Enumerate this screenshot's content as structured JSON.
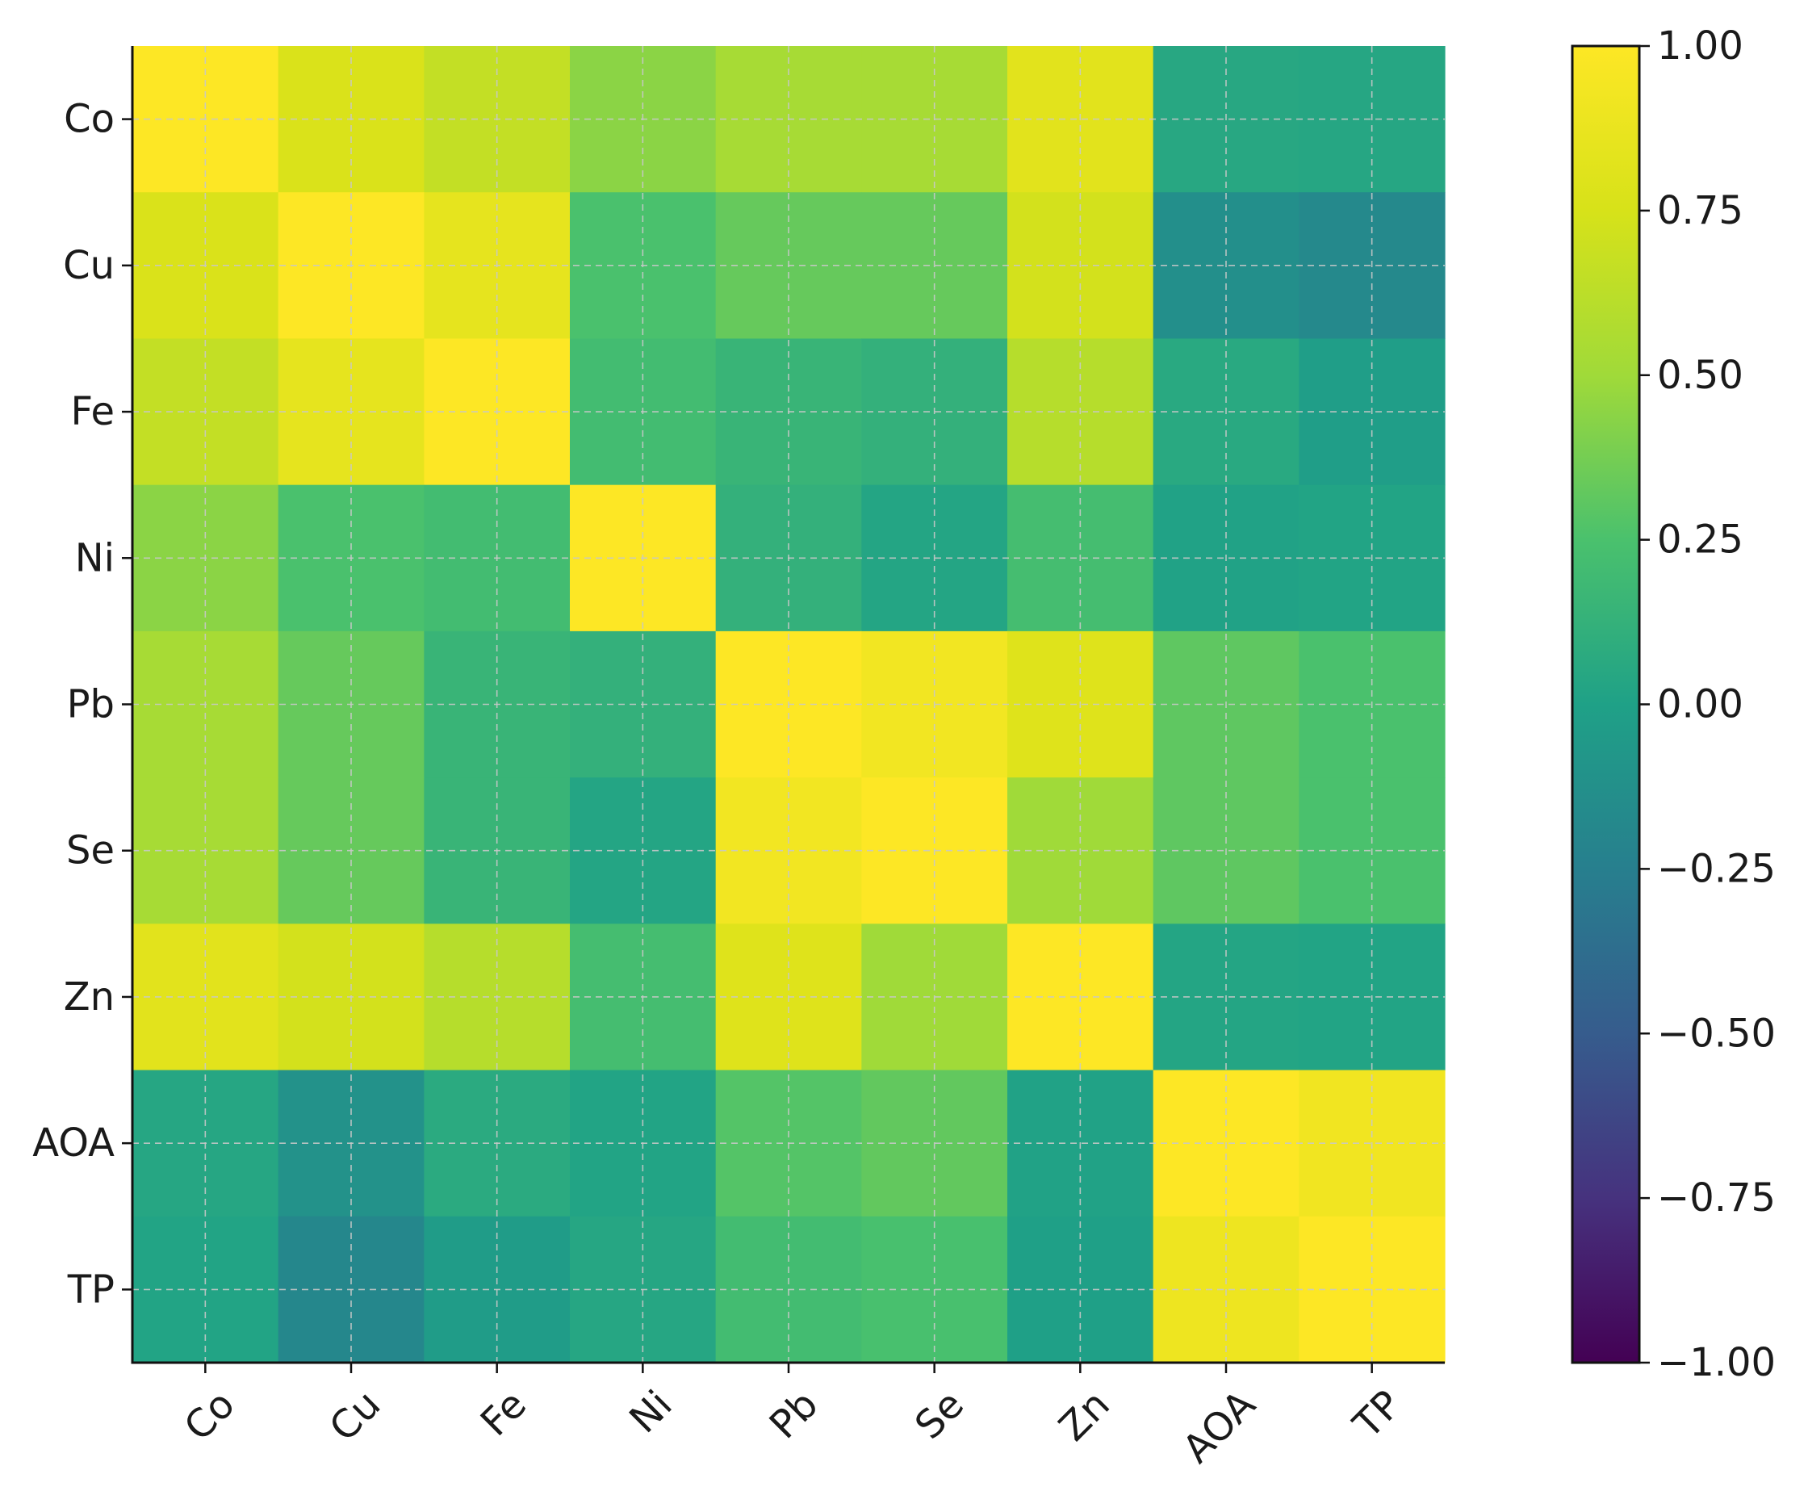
{
  "chart_data": {
    "type": "heatmap",
    "title": "",
    "xlabel": "",
    "ylabel": "",
    "row_labels": [
      "Co",
      "Cu",
      "Fe",
      "Ni",
      "Pb",
      "Se",
      "Zn",
      "AOA",
      "TP"
    ],
    "col_labels": [
      "Co",
      "Cu",
      "Fe",
      "Ni",
      "Pb",
      "Se",
      "Zn",
      "AOA",
      "TP"
    ],
    "values": [
      [
        1.0,
        0.77,
        0.66,
        0.44,
        0.53,
        0.53,
        0.82,
        0.05,
        0.04
      ],
      [
        0.77,
        1.0,
        0.85,
        0.25,
        0.33,
        0.33,
        0.73,
        -0.13,
        -0.18
      ],
      [
        0.66,
        0.85,
        1.0,
        0.21,
        0.15,
        0.12,
        0.6,
        0.06,
        -0.02
      ],
      [
        0.44,
        0.25,
        0.21,
        1.0,
        0.12,
        0.03,
        0.22,
        0.01,
        0.02
      ],
      [
        0.53,
        0.33,
        0.15,
        0.12,
        1.0,
        0.93,
        0.8,
        0.31,
        0.25
      ],
      [
        0.53,
        0.33,
        0.15,
        0.03,
        0.93,
        1.0,
        0.5,
        0.31,
        0.25
      ],
      [
        0.82,
        0.73,
        0.6,
        0.22,
        0.8,
        0.5,
        1.0,
        0.03,
        0.02
      ],
      [
        0.04,
        -0.11,
        0.07,
        0.02,
        0.28,
        0.32,
        0.01,
        1.0,
        0.92
      ],
      [
        0.02,
        -0.19,
        -0.04,
        0.04,
        0.21,
        0.24,
        -0.01,
        0.9,
        1.0
      ]
    ],
    "colormap": "viridis",
    "colorbar": {
      "range": [
        -1.0,
        1.0
      ],
      "ticks": [
        "1.00",
        "0.75",
        "0.50",
        "0.25",
        "0.00",
        "−0.25",
        "−0.50",
        "−0.75",
        "−1.00"
      ]
    },
    "grid": true,
    "grid_style": "dashed"
  }
}
